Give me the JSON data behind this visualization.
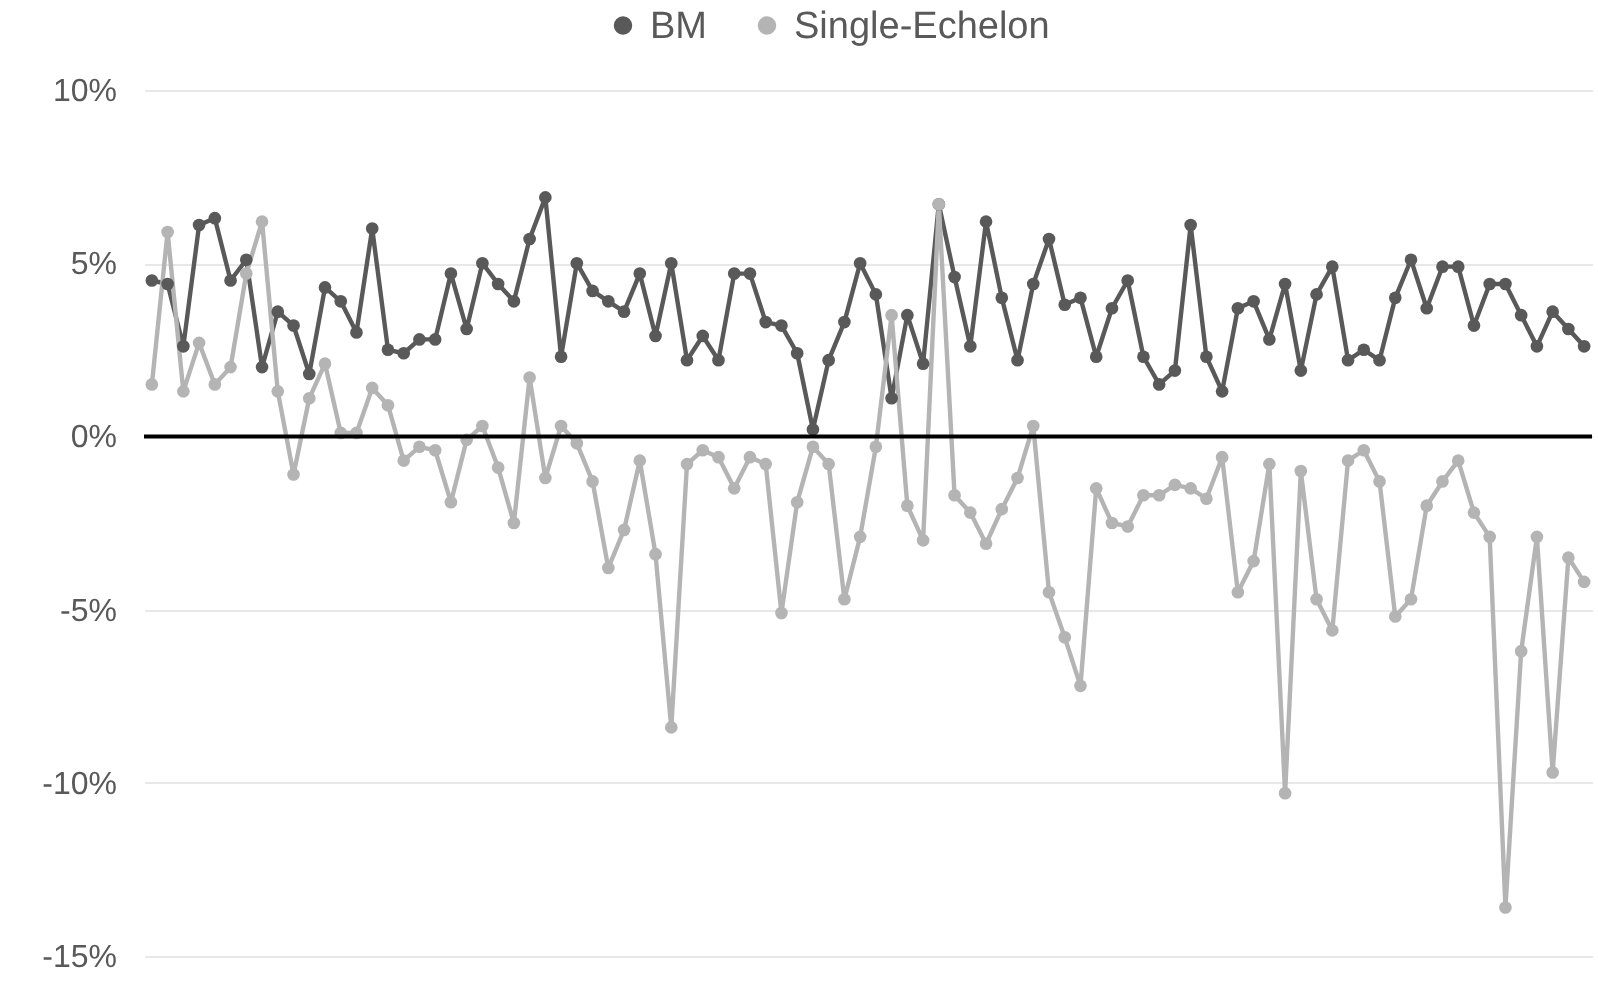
{
  "chart_data": {
    "type": "line",
    "categories": [
      null,
      null,
      null,
      null,
      null,
      null,
      null,
      null,
      null,
      null,
      null,
      null,
      null,
      null,
      null,
      null,
      null,
      null,
      null,
      null,
      null,
      null,
      null,
      null,
      null,
      null,
      null,
      null,
      null,
      null,
      null,
      null,
      null,
      null,
      null,
      null,
      null,
      null,
      null,
      null,
      null,
      null,
      null,
      null,
      null,
      null,
      null,
      null,
      null,
      null,
      null,
      null,
      null,
      null,
      null,
      null,
      null,
      null,
      null,
      null,
      null,
      null,
      null,
      null,
      null,
      null,
      null,
      null,
      null,
      null,
      null,
      null,
      null,
      null,
      null,
      null,
      null,
      null,
      null,
      null,
      null,
      null,
      null,
      null,
      null,
      null,
      null,
      null,
      null,
      null,
      null,
      null
    ],
    "series": [
      {
        "name": "BM",
        "color": "#595959",
        "values": [
          4.5,
          4.4,
          2.6,
          6.1,
          6.3,
          4.5,
          5.1,
          2.0,
          3.6,
          3.2,
          1.8,
          4.3,
          3.9,
          3.0,
          6.0,
          2.5,
          2.4,
          2.8,
          2.8,
          4.7,
          3.1,
          5.0,
          4.4,
          3.9,
          5.7,
          6.9,
          2.3,
          5.0,
          4.2,
          3.9,
          3.6,
          4.7,
          2.9,
          5.0,
          2.2,
          2.9,
          2.2,
          4.7,
          4.7,
          3.3,
          3.2,
          2.4,
          0.2,
          2.2,
          3.3,
          5.0,
          4.1,
          1.1,
          3.5,
          2.1,
          6.7,
          4.6,
          2.6,
          6.2,
          4.0,
          2.2,
          4.4,
          5.7,
          3.8,
          4.0,
          2.3,
          3.7,
          4.5,
          2.3,
          1.5,
          1.9,
          6.1,
          2.3,
          1.3,
          3.7,
          3.9,
          2.8,
          4.4,
          1.9,
          4.1,
          4.9,
          2.2,
          2.5,
          2.2,
          4.0,
          5.1,
          3.7,
          4.9,
          4.9,
          3.2,
          4.4,
          4.4,
          3.5,
          2.6,
          3.6,
          3.1,
          2.6
        ]
      },
      {
        "name": "Single-Echelon",
        "color": "#b4b4b4",
        "values": [
          1.5,
          5.9,
          1.3,
          2.7,
          1.5,
          2.0,
          4.7,
          6.2,
          1.3,
          -1.1,
          1.1,
          2.1,
          0.1,
          0.1,
          1.4,
          0.9,
          -0.7,
          -0.3,
          -0.4,
          -1.9,
          -0.1,
          0.3,
          -0.9,
          -2.5,
          1.7,
          -1.2,
          0.3,
          -0.2,
          -1.3,
          -3.8,
          -2.7,
          -0.7,
          -3.4,
          -8.4,
          -0.8,
          -0.4,
          -0.6,
          -1.5,
          -0.6,
          -0.8,
          -5.1,
          -1.9,
          -0.3,
          -0.8,
          -4.7,
          -2.9,
          -0.3,
          3.5,
          -2.0,
          -3.0,
          6.7,
          -1.7,
          -2.2,
          -3.1,
          -2.1,
          -1.2,
          0.3,
          -4.5,
          -5.8,
          -7.2,
          -1.5,
          -2.5,
          -2.6,
          -1.7,
          -1.7,
          -1.4,
          -1.5,
          -1.8,
          -0.6,
          -4.5,
          -3.6,
          -0.8,
          -10.3,
          -1.0,
          -4.7,
          -5.6,
          -0.7,
          -0.4,
          -1.3,
          -5.2,
          -4.7,
          -2.0,
          -1.3,
          -0.7,
          -2.2,
          -2.9,
          -13.6,
          -6.2,
          -2.9,
          -9.7,
          -3.5,
          -4.2
        ]
      }
    ],
    "ylim": [
      -15,
      10
    ],
    "yticks": [
      {
        "value": -15,
        "label": "-15%"
      },
      {
        "value": -10,
        "label": "-10%"
      },
      {
        "value": -5,
        "label": "-5%"
      },
      {
        "value": 0,
        "label": "0%"
      },
      {
        "value": 5,
        "label": "5%"
      },
      {
        "value": 10,
        "label": "10%"
      }
    ],
    "ref_lines": [
      {
        "axis": "y",
        "value": 0,
        "color": "#000000"
      }
    ],
    "grid": "y",
    "legend": "top",
    "tick_labels": "y",
    "marker": "circle",
    "line_style": "solid"
  }
}
